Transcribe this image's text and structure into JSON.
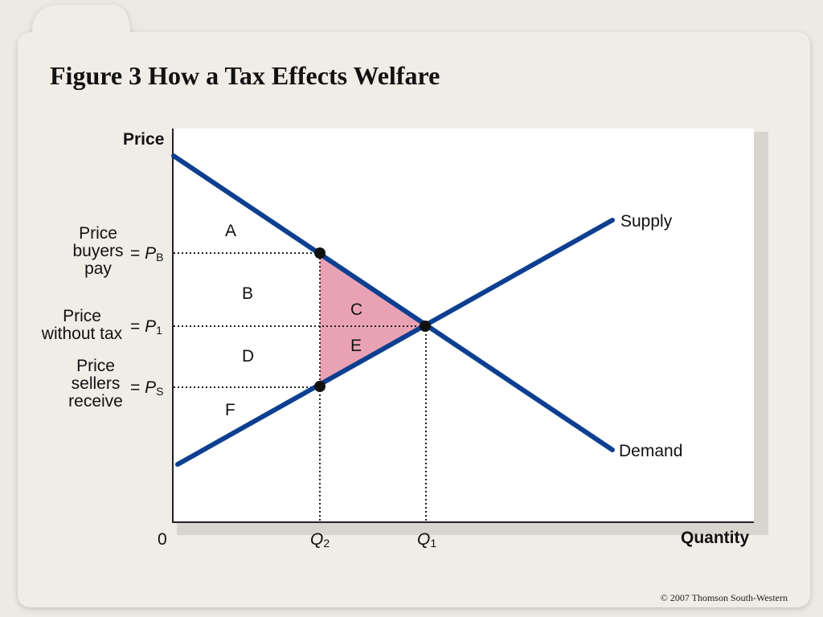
{
  "title": "Figure 3 How a Tax Effects Welfare",
  "copyright": "© 2007 Thomson South-Western",
  "axes": {
    "y_label": "Price",
    "x_label": "Quantity",
    "origin": "0"
  },
  "curves": {
    "supply": "Supply",
    "demand": "Demand"
  },
  "price_levels": [
    {
      "label_lines": [
        "Price",
        "buyers",
        "pay"
      ],
      "eq": "=",
      "symbol": "P",
      "sub": "B"
    },
    {
      "label_lines": [
        "Price",
        "without tax"
      ],
      "eq": "=",
      "symbol": "P",
      "sub": "1"
    },
    {
      "label_lines": [
        "Price",
        "sellers",
        "receive"
      ],
      "eq": "=",
      "symbol": "P",
      "sub": "S"
    }
  ],
  "quantities": [
    {
      "symbol": "Q",
      "sub": "2"
    },
    {
      "symbol": "Q",
      "sub": "1"
    }
  ],
  "areas": {
    "A": "A",
    "B": "B",
    "C": "C",
    "D": "D",
    "E": "E",
    "F": "F"
  },
  "colors": {
    "curve": "#0d3f91",
    "deadweight_loss": "#e9a2b4",
    "guide_line": "#222222"
  }
}
